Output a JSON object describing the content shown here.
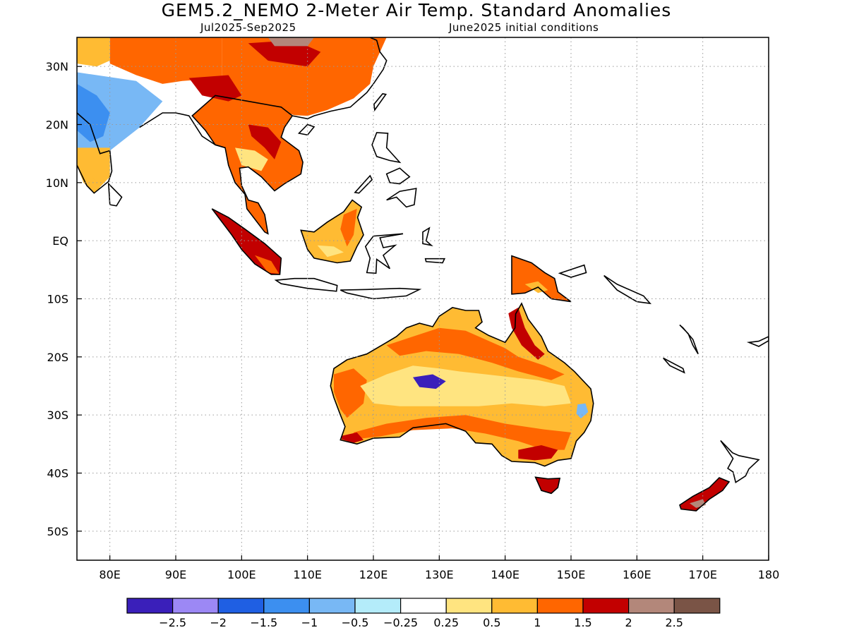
{
  "title": "GEM5.2_NEMO 2-Meter Air Temp. Standard Anomalies",
  "subtitle_left": "Jul2025-Sep2025",
  "subtitle_right": "June2025 initial conditions",
  "map": {
    "lon_range": [
      75,
      180
    ],
    "lat_range": [
      -55,
      35
    ],
    "lat_ticks": [
      {
        "value": 30,
        "label": "30N"
      },
      {
        "value": 20,
        "label": "20N"
      },
      {
        "value": 10,
        "label": "10N"
      },
      {
        "value": 0,
        "label": "EQ"
      },
      {
        "value": -10,
        "label": "10S"
      },
      {
        "value": -20,
        "label": "20S"
      },
      {
        "value": -30,
        "label": "30S"
      },
      {
        "value": -40,
        "label": "40S"
      },
      {
        "value": -50,
        "label": "50S"
      }
    ],
    "lon_ticks": [
      {
        "value": 80,
        "label": "80E"
      },
      {
        "value": 90,
        "label": "90E"
      },
      {
        "value": 100,
        "label": "100E"
      },
      {
        "value": 110,
        "label": "110E"
      },
      {
        "value": 120,
        "label": "120E"
      },
      {
        "value": 130,
        "label": "130E"
      },
      {
        "value": 140,
        "label": "140E"
      },
      {
        "value": 150,
        "label": "150E"
      },
      {
        "value": 160,
        "label": "160E"
      },
      {
        "value": 170,
        "label": "170E"
      },
      {
        "value": 180,
        "label": "180"
      }
    ],
    "grid": "dotted",
    "anomaly_regions": [
      {
        "name": "australia",
        "level": "1",
        "outline": [
          [
            114,
            -22
          ],
          [
            116,
            -20.5
          ],
          [
            119,
            -19.5
          ],
          [
            122,
            -17.5
          ],
          [
            123.5,
            -16.5
          ],
          [
            125,
            -15
          ],
          [
            127,
            -14.2
          ],
          [
            129,
            -14.8
          ],
          [
            130,
            -13
          ],
          [
            132,
            -11.5
          ],
          [
            134,
            -12
          ],
          [
            136,
            -12
          ],
          [
            136.5,
            -14
          ],
          [
            135.5,
            -15
          ],
          [
            137.5,
            -16.3
          ],
          [
            140,
            -17.5
          ],
          [
            141.5,
            -15
          ],
          [
            141.6,
            -12.6
          ],
          [
            142.5,
            -10.8
          ],
          [
            143.5,
            -13.5
          ],
          [
            144.5,
            -15
          ],
          [
            145.5,
            -16.5
          ],
          [
            146.5,
            -19
          ],
          [
            149,
            -21
          ],
          [
            150.5,
            -22.5
          ],
          [
            153,
            -25.5
          ],
          [
            153.4,
            -28
          ],
          [
            153,
            -31
          ],
          [
            152,
            -33
          ],
          [
            150.8,
            -34.5
          ],
          [
            150,
            -37.5
          ],
          [
            148,
            -37.8
          ],
          [
            146,
            -38.8
          ],
          [
            144.5,
            -38.2
          ],
          [
            141,
            -38
          ],
          [
            139.5,
            -37
          ],
          [
            138,
            -35
          ],
          [
            135.5,
            -34.8
          ],
          [
            134,
            -32.8
          ],
          [
            131,
            -31.5
          ],
          [
            126,
            -32.2
          ],
          [
            124,
            -33.8
          ],
          [
            120,
            -34
          ],
          [
            117.5,
            -35
          ],
          [
            115,
            -34.3
          ],
          [
            115.7,
            -32
          ],
          [
            115,
            -30
          ],
          [
            114,
            -27
          ],
          [
            113.5,
            -25
          ],
          [
            114,
            -22
          ]
        ]
      },
      {
        "name": "tas",
        "level": "2",
        "outline": [
          [
            144.6,
            -40.7
          ],
          [
            146.5,
            -41
          ],
          [
            148.3,
            -40.9
          ],
          [
            148,
            -42.5
          ],
          [
            147,
            -43.5
          ],
          [
            145.5,
            -43
          ],
          [
            144.6,
            -40.7
          ]
        ]
      },
      {
        "name": "seasia",
        "level": "1.5",
        "outline": [
          [
            92.5,
            21.5
          ],
          [
            94.5,
            19
          ],
          [
            96,
            16.5
          ],
          [
            97.5,
            16
          ],
          [
            98,
            13
          ],
          [
            99,
            10
          ],
          [
            100.5,
            8
          ],
          [
            100.8,
            5.5
          ],
          [
            103.5,
            1.5
          ],
          [
            104,
            1.2
          ],
          [
            103.5,
            4.5
          ],
          [
            102.5,
            6.5
          ],
          [
            101,
            7
          ],
          [
            100,
            9.5
          ],
          [
            99.7,
            12.5
          ],
          [
            101,
            12.7
          ],
          [
            103,
            11
          ],
          [
            105,
            8.6
          ],
          [
            106.5,
            9.8
          ],
          [
            109,
            11.5
          ],
          [
            109.3,
            13.5
          ],
          [
            108.7,
            15.5
          ],
          [
            106,
            17.8
          ],
          [
            106.5,
            19.5
          ],
          [
            107.7,
            21.5
          ],
          [
            106,
            23
          ],
          [
            101,
            24
          ],
          [
            96,
            25
          ],
          [
            92.5,
            21.5
          ]
        ]
      },
      {
        "name": "china",
        "level": "1.5",
        "outline": [
          [
            97,
            35
          ],
          [
            122,
            35
          ],
          [
            120,
            30
          ],
          [
            119.5,
            27
          ],
          [
            117,
            24.5
          ],
          [
            113,
            22.5
          ],
          [
            110,
            21.5
          ],
          [
            108,
            21.6
          ],
          [
            104,
            23
          ],
          [
            99,
            24.5
          ],
          [
            97,
            28
          ],
          [
            97,
            35
          ]
        ]
      },
      {
        "name": "himalaya",
        "level": "1.5",
        "outline": [
          [
            80,
            35
          ],
          [
            97,
            35
          ],
          [
            97,
            28
          ],
          [
            91,
            27.5
          ],
          [
            88,
            27
          ],
          [
            84,
            28.5
          ],
          [
            80,
            30.5
          ],
          [
            80,
            35
          ]
        ]
      },
      {
        "name": "india-nw",
        "level": "1",
        "outline": [
          [
            75,
            35
          ],
          [
            80,
            35
          ],
          [
            80,
            31
          ],
          [
            78,
            30
          ],
          [
            75,
            30.5
          ],
          [
            75,
            35
          ]
        ]
      },
      {
        "name": "india",
        "level": "-0.5",
        "outline": [
          [
            75,
            29
          ],
          [
            84,
            27.5
          ],
          [
            88,
            24
          ],
          [
            84.5,
            19.5
          ],
          [
            80,
            15.5
          ],
          [
            80,
            11
          ],
          [
            77.5,
            8.2
          ],
          [
            75.8,
            11
          ],
          [
            75,
            14
          ],
          [
            75,
            29
          ]
        ]
      },
      {
        "name": "india-s",
        "level": "1",
        "outline": [
          [
            75,
            16
          ],
          [
            80,
            16
          ],
          [
            80,
            11
          ],
          [
            77.6,
            8.2
          ],
          [
            75.8,
            11
          ],
          [
            75,
            13
          ],
          [
            75,
            16
          ]
        ]
      },
      {
        "name": "borneo",
        "level": "1",
        "outline": [
          [
            109,
            1.8
          ],
          [
            111,
            1.5
          ],
          [
            113,
            3.2
          ],
          [
            115.5,
            5
          ],
          [
            116.8,
            7
          ],
          [
            118.2,
            5.8
          ],
          [
            117.6,
            4
          ],
          [
            118.5,
            1
          ],
          [
            117.5,
            -1
          ],
          [
            116.5,
            -3.5
          ],
          [
            114.5,
            -3.8
          ],
          [
            111,
            -3
          ],
          [
            110,
            -1.5
          ],
          [
            109,
            1.8
          ]
        ]
      },
      {
        "name": "sumatra",
        "level": "2",
        "outline": [
          [
            95.5,
            5.5
          ],
          [
            98,
            4
          ],
          [
            100.5,
            2
          ],
          [
            103.5,
            -0.5
          ],
          [
            106,
            -3
          ],
          [
            105.8,
            -5.8
          ],
          [
            104.5,
            -5.8
          ],
          [
            102,
            -4
          ],
          [
            100,
            -1.5
          ],
          [
            98.5,
            1
          ],
          [
            95.5,
            5.5
          ]
        ]
      },
      {
        "name": "png",
        "level": "1.5",
        "outline": [
          [
            141,
            -2.6
          ],
          [
            144,
            -3.8
          ],
          [
            146,
            -5.5
          ],
          [
            147.5,
            -6.5
          ],
          [
            148,
            -8.8
          ],
          [
            150,
            -10.5
          ],
          [
            147,
            -10
          ],
          [
            145,
            -8
          ],
          [
            143,
            -9
          ],
          [
            141,
            -9.2
          ],
          [
            141,
            -2.6
          ]
        ]
      },
      {
        "name": "nz-s",
        "level": "2",
        "outline": [
          [
            166.5,
            -45.5
          ],
          [
            168.5,
            -44
          ],
          [
            171,
            -42.5
          ],
          [
            172.5,
            -40.8
          ],
          [
            174,
            -41.5
          ],
          [
            173,
            -43
          ],
          [
            171,
            -44.5
          ],
          [
            169,
            -46.5
          ],
          [
            166.7,
            -46.2
          ],
          [
            166.5,
            -45.5
          ]
        ]
      }
    ]
  },
  "colorbar": {
    "colors": [
      "#3a1fba",
      "#9c88f5",
      "#1f5fe3",
      "#3c8ff0",
      "#78b8f5",
      "#b4ecfa",
      "#ffffff",
      "#ffe480",
      "#ffbb33",
      "#ff6600",
      "#c20000",
      "#b3877a",
      "#7a5446"
    ],
    "tick_labels": [
      "-2.5",
      "-2",
      "-1.5",
      "-1",
      "-0.5",
      "-0.25",
      "0.25",
      "0.5",
      "1",
      "1.5",
      "2",
      "2.5"
    ]
  },
  "colors": {
    "ocean": "#ffffff",
    "coastline": "#000000",
    "grid": "#9a9a9a"
  }
}
